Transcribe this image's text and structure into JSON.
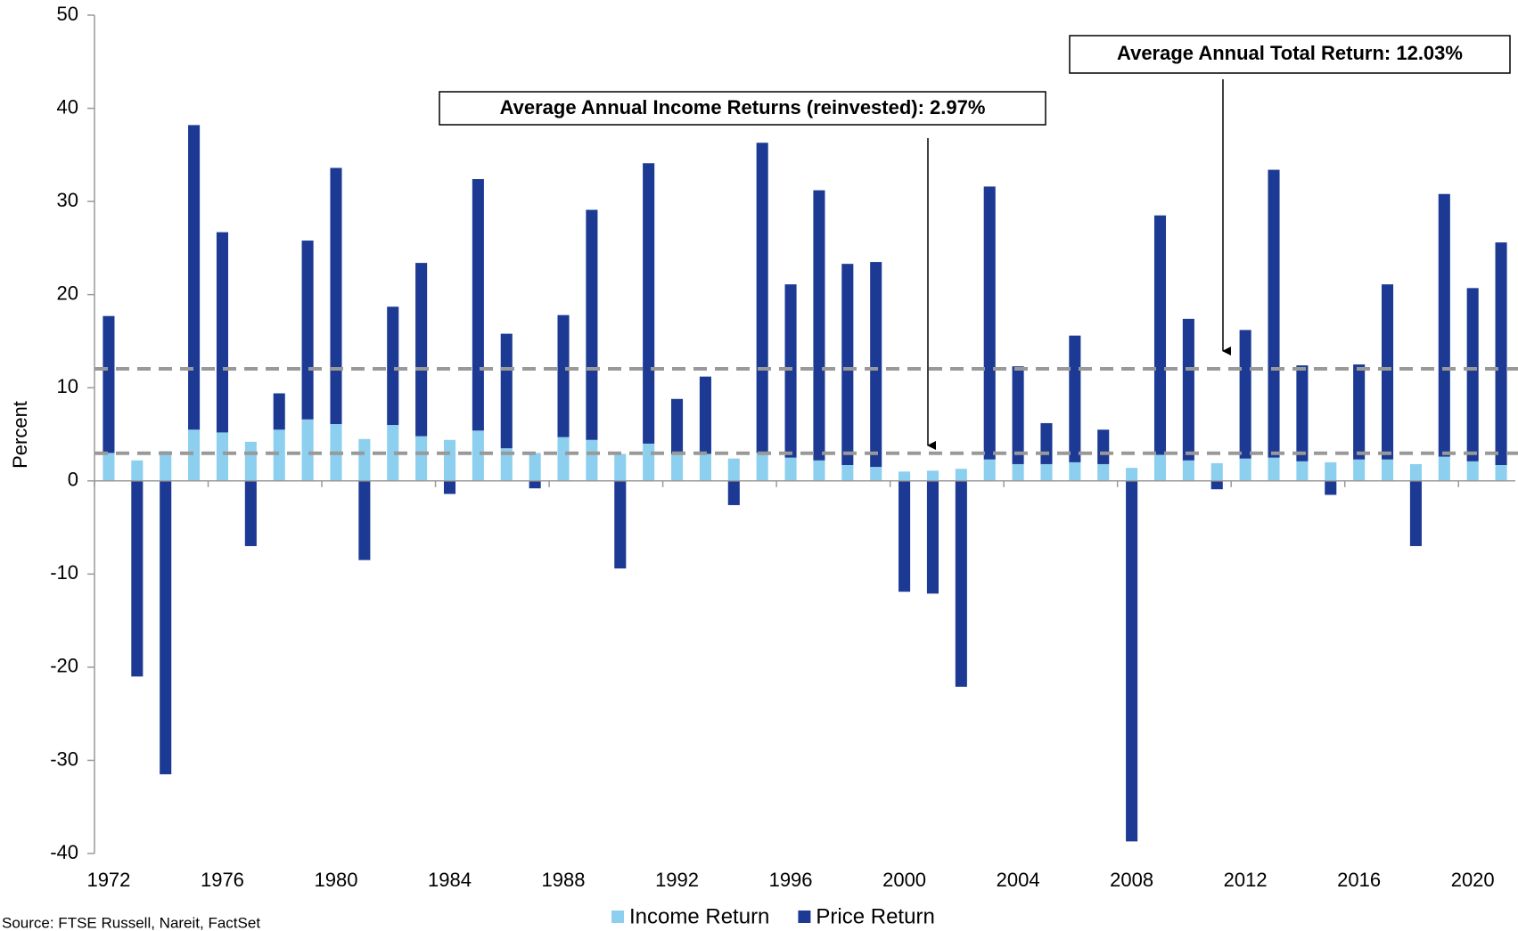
{
  "chart_data": {
    "type": "stacked_bar",
    "ylabel": "Percent",
    "source": "Source: FTSE Russell, Nareit, FactSet",
    "categories": [
      "1972",
      null,
      null,
      null,
      "1976",
      null,
      null,
      null,
      "1980",
      null,
      null,
      null,
      "1984",
      null,
      null,
      null,
      "1988",
      null,
      null,
      null,
      "1992",
      null,
      null,
      null,
      "1996",
      null,
      null,
      null,
      "2000",
      null,
      null,
      null,
      "2004",
      null,
      null,
      null,
      "2008",
      null,
      null,
      null,
      "2012",
      null,
      null,
      null,
      "2016",
      null,
      null,
      null,
      "2020",
      null
    ],
    "series": [
      {
        "name": "Income Return",
        "color": "#8dcfee",
        "values": [
          3.0,
          2.2,
          3.2,
          5.5,
          5.2,
          4.2,
          5.5,
          6.6,
          6.1,
          4.5,
          6.0,
          4.8,
          4.4,
          5.4,
          3.5,
          3.0,
          4.7,
          4.4,
          2.9,
          4.0,
          2.9,
          2.9,
          2.4,
          3.0,
          2.5,
          2.2,
          1.7,
          1.5,
          1.0,
          1.1,
          1.3,
          2.3,
          1.8,
          1.8,
          2.0,
          1.8,
          1.4,
          2.8,
          2.2,
          1.9,
          2.4,
          2.5,
          2.1,
          2.0,
          2.3,
          2.3,
          1.8,
          2.6,
          2.1,
          1.7
        ]
      },
      {
        "name": "Price Return",
        "color": "#1c3a94",
        "values": [
          14.7,
          -21.0,
          -31.5,
          32.7,
          21.5,
          -7.0,
          3.9,
          19.2,
          27.5,
          -8.5,
          12.7,
          18.6,
          -1.4,
          27.0,
          12.3,
          -0.8,
          13.1,
          24.7,
          -9.4,
          30.1,
          5.9,
          8.3,
          -2.6,
          33.3,
          18.6,
          29.0,
          21.6,
          22.0,
          -11.9,
          -12.1,
          -22.1,
          29.3,
          10.5,
          4.4,
          13.6,
          3.7,
          -38.7,
          25.7,
          15.2,
          -0.9,
          13.8,
          30.9,
          10.3,
          -1.5,
          10.2,
          18.8,
          -7.0,
          28.2,
          18.6,
          23.9
        ]
      }
    ],
    "hlines": [
      12.03,
      2.97
    ],
    "hline_color": "#999999",
    "annotations": [
      "Average Annual Income Returns (reinvested): 2.97%",
      "Average Annual Total Return: 12.03%"
    ],
    "ylim": [
      -40,
      50
    ],
    "yticks": [
      -40,
      -30,
      -20,
      -10,
      0,
      10,
      20,
      30,
      40,
      50
    ]
  }
}
